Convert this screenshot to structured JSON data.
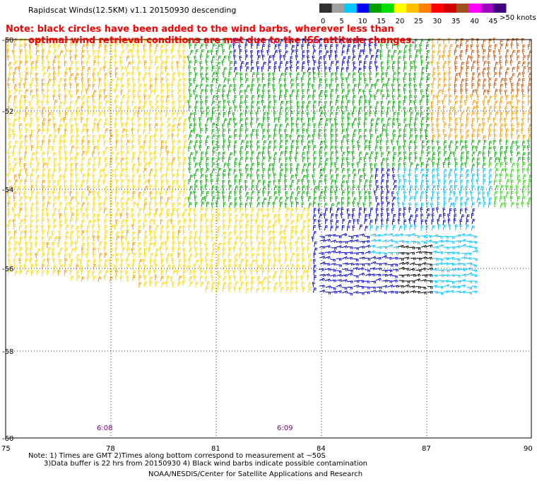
{
  "header": {
    "title": "Rapidscat Winds(12.5KM) v1.1 20150930 descending"
  },
  "note": {
    "line1": "Note: black circles have been added to the wind barbs, wherever less than",
    "line2": "optimal wind retrieval conditions are met due to the ISS attitude changes."
  },
  "colorbar": {
    "unit": ">50 knots",
    "labels": [
      "0",
      "5",
      "10",
      "15",
      "20",
      "25",
      "30",
      "35",
      "40",
      "45"
    ],
    "colors": [
      "#303030",
      "#a0a0a0",
      "#00c8ff",
      "#0000ff",
      "#00a000",
      "#00e000",
      "#ffff00",
      "#ffc000",
      "#ff8000",
      "#ff0000",
      "#d00000",
      "#a05020",
      "#ff00ff",
      "#a000c0",
      "#400080"
    ]
  },
  "map": {
    "lat_labels": [
      "-50",
      "-52",
      "-54",
      "-56",
      "-58",
      "-60"
    ],
    "lon_labels": [
      "75",
      "78",
      "81",
      "84",
      "87",
      "90"
    ],
    "time_labels": [
      "6:08",
      "6:09"
    ],
    "barb_colors": {
      "yellow": "#ffd700",
      "orange": "#ff9900",
      "dark_orange": "#d05000",
      "green": "#00b000",
      "light_green": "#22dd00",
      "blue": "#0000d0",
      "cyan": "#00c0ff",
      "black": "#000000"
    }
  },
  "footer": {
    "line1": "Note: 1) Times are GMT 2)Times along bottom correspond to measurement at ~50S",
    "line2": "3)Data buffer is 22 hrs from 20150930 4) Black wind barbs indicate possible contamination",
    "credit": "NOAA/NESDIS/Center for Satellite Applications and Research"
  }
}
